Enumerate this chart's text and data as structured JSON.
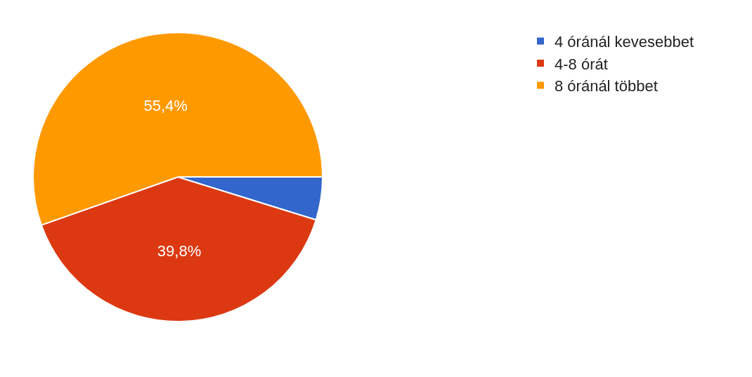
{
  "chart_data": {
    "type": "pie",
    "categories": [
      "4 óránál kevesebbet",
      "4-8 órát",
      "8 óránál többet"
    ],
    "values": [
      4.8,
      39.8,
      55.4
    ],
    "colors": [
      "#3366cc",
      "#dc3912",
      "#ff9900"
    ],
    "value_labels": [
      null,
      "39,8%",
      "55,4%"
    ],
    "legend": "top right"
  }
}
